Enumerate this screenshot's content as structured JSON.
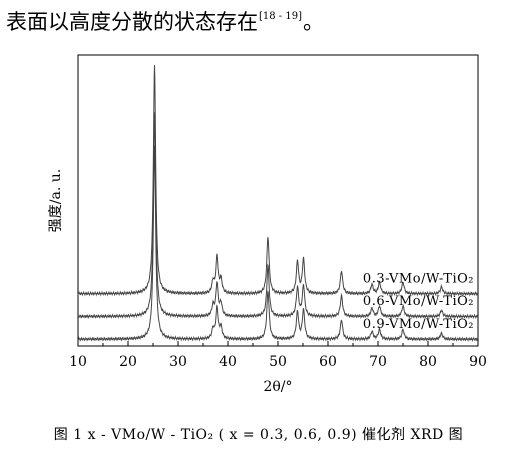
{
  "header": {
    "text": "表面以高度分散的状态存在",
    "citation": "[18 - 19]",
    "end": "。"
  },
  "caption": "图 1    x  - VMo/W - TiO₂ ( x  = 0.3, 0.6, 0.9) 催化剂 XRD 图",
  "chart_data": {
    "type": "line",
    "title": "",
    "xlabel": "2θ/°",
    "ylabel": "强度/a. u.",
    "xlim": [
      10,
      90
    ],
    "xticks": [
      10,
      20,
      30,
      40,
      50,
      60,
      70,
      80,
      90
    ],
    "yticks_shown": false,
    "grid": false,
    "series_line_color": "#444444",
    "peaks": [
      {
        "two_theta": 25.3,
        "intensity": 1.0
      },
      {
        "two_theta": 37.0,
        "intensity": 0.05
      },
      {
        "two_theta": 37.8,
        "intensity": 0.16
      },
      {
        "two_theta": 38.6,
        "intensity": 0.06
      },
      {
        "two_theta": 48.0,
        "intensity": 0.25
      },
      {
        "two_theta": 53.9,
        "intensity": 0.14
      },
      {
        "two_theta": 55.1,
        "intensity": 0.15
      },
      {
        "two_theta": 62.7,
        "intensity": 0.1
      },
      {
        "two_theta": 68.8,
        "intensity": 0.04
      },
      {
        "two_theta": 70.3,
        "intensity": 0.05
      },
      {
        "two_theta": 75.0,
        "intensity": 0.05
      },
      {
        "two_theta": 82.7,
        "intensity": 0.03
      }
    ],
    "series": [
      {
        "name": "0.3-VMo/W-TiO₂",
        "baseline": 0.2,
        "scale": 1.0
      },
      {
        "name": "0.6-VMo/W-TiO₂",
        "baseline": 0.1,
        "scale": 0.9
      },
      {
        "name": "0.9-VMo/W-TiO₂",
        "baseline": 0.0,
        "scale": 0.85
      }
    ],
    "ylim": [
      -0.03,
      1.25
    ]
  }
}
